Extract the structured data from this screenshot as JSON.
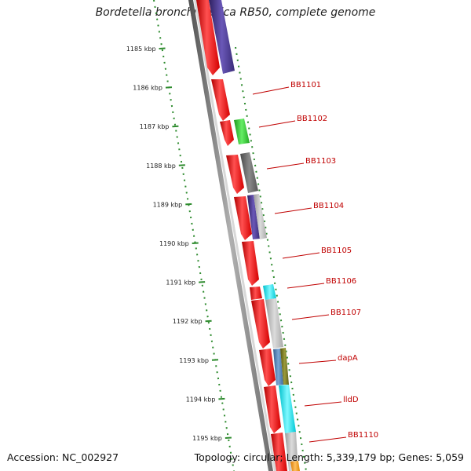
{
  "title": "Bordetella bronchiseptica RB50, complete genome",
  "footer": {
    "accession": "Accession: NC_002927",
    "summary": "Topology: circular; Length: 5,339,179 bp; Genes: 5,059"
  },
  "ticks": [
    "1185 kbp",
    "1186 kbp",
    "1187 kbp",
    "1188 kbp",
    "1189 kbp",
    "1190 kbp",
    "1191 kbp",
    "1192 kbp",
    "1193 kbp",
    "1194 kbp",
    "1195 kbp"
  ],
  "gene_labels": [
    "BB1101",
    "BB1102",
    "BB1103",
    "BB1104",
    "BB1105",
    "BB1106",
    "BB1107",
    "dapA",
    "lldD",
    "BB1110"
  ],
  "colors": {
    "cds_forward": "#ff1a1a",
    "backbone": "#808080",
    "tick_green": "#2e8b2e",
    "label_red": "#c00000",
    "purple": "#4b3a8f",
    "green": "#33cc33",
    "darkgray": "#6e6e6e",
    "lightgray": "#b8b8b8",
    "cyan": "#00e5ee",
    "steelblue": "#4f7fb3",
    "olive": "#7a7a1e",
    "orange": "#ff9900"
  }
}
